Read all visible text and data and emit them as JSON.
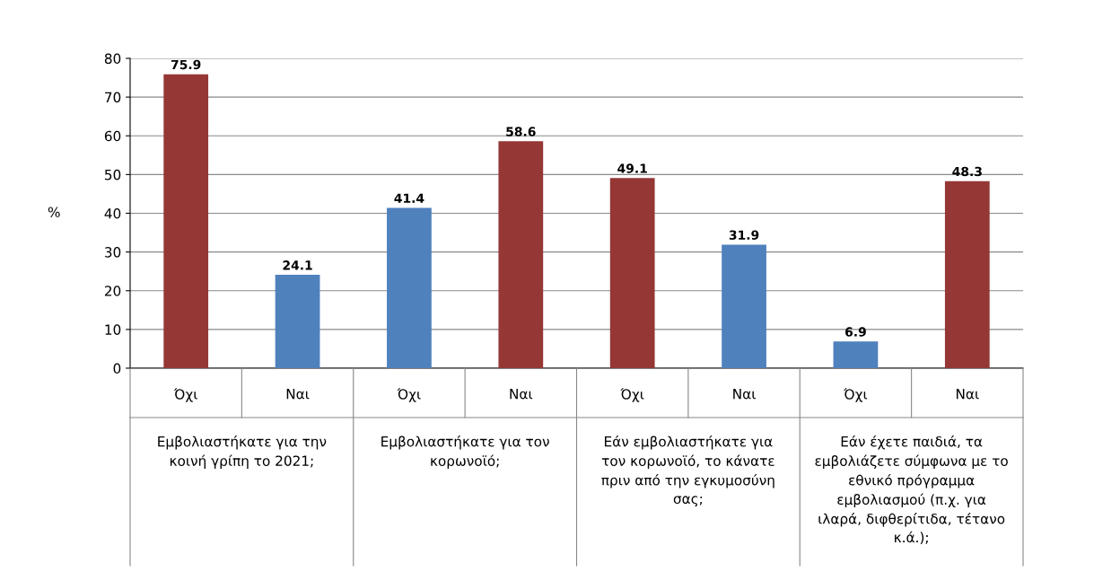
{
  "chart_data": {
    "type": "bar",
    "ylabel": "%",
    "categories": [
      "Όχι",
      "Ναι",
      "Όχι",
      "Ναι",
      "Όχι",
      "Ναι",
      "Όχι",
      "Ναι"
    ],
    "values": [
      75.9,
      24.1,
      41.4,
      58.6,
      49.1,
      31.9,
      6.9,
      48.3
    ],
    "colors": [
      "#953735",
      "#4f81bd",
      "#4f81bd",
      "#953735",
      "#953735",
      "#4f81bd",
      "#4f81bd",
      "#953735"
    ],
    "ylim": [
      0,
      80
    ],
    "yticks": [
      0,
      10,
      20,
      30,
      40,
      50,
      60,
      70,
      80
    ],
    "grid": "y",
    "data_labels": true,
    "annotations": [
      "Εμβολιαστήκατε για την κοινή γρίπη το 2021;",
      "Εμβολιαστήκατε για τον κορωνοϊό;",
      "Εάν εμβολιαστήκατε για τον κορωνοϊό, το κάνατε πριν από την εγκυμοσύνη σας;",
      "Εάν έχετε παιδιά, τα εμβολιάζετε σύμφωνα με το εθνικό πρόγραμμα εμβολιασμού (π.χ. για ιλαρά, διφθερίτιδα, τέτανο κ.ά.);"
    ]
  }
}
